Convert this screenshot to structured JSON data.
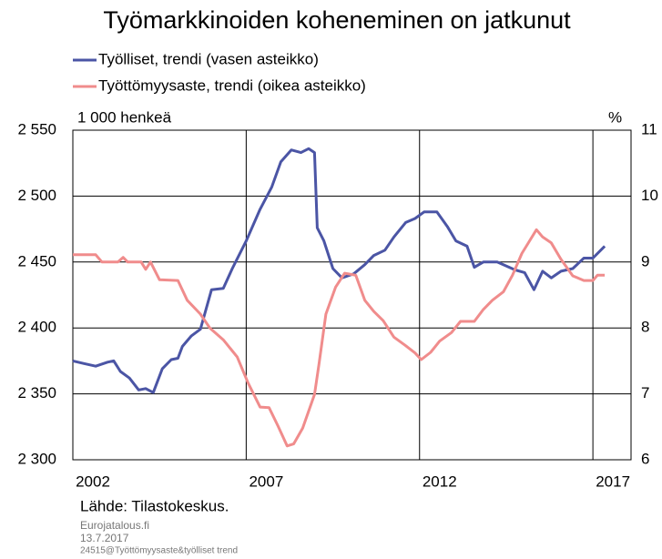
{
  "chart_data": {
    "type": "line",
    "title": "Työmarkkinoiden koheneminen on jatkunut",
    "y_label": "1 000 henkeä",
    "y2_label": "%",
    "source": "Lähde: Tilastokeskus.",
    "footer": [
      "Eurojatalous.fi",
      "13.7.2017",
      "24515@Työttömyysaste&työlliset trend"
    ],
    "xlim": [
      2002,
      2018.1
    ],
    "xticks": [
      2002,
      2007,
      2012,
      2017
    ],
    "ylim": [
      2300,
      2550
    ],
    "yticks": [
      {
        "value": 2300,
        "label": "2 300"
      },
      {
        "value": 2350,
        "label": "2 350"
      },
      {
        "value": 2400,
        "label": "2 400"
      },
      {
        "value": 2450,
        "label": "2 450"
      },
      {
        "value": 2500,
        "label": "2 500"
      },
      {
        "value": 2550,
        "label": "2 550"
      }
    ],
    "y2lim": [
      6,
      11
    ],
    "y2ticks": [
      6,
      7,
      8,
      9,
      10,
      11
    ],
    "grid": true,
    "legend": "top",
    "series": [
      {
        "name": "Työlliset, trendi (vasen asteikko)",
        "color": "#4b55a5",
        "axis": "y",
        "x": [
          2002.0,
          2002.32,
          2002.66,
          2003.0,
          2003.18,
          2003.37,
          2003.63,
          2003.9,
          2004.1,
          2004.32,
          2004.58,
          2004.84,
          2005.03,
          2005.16,
          2005.42,
          2005.68,
          2006.0,
          2006.34,
          2006.6,
          2007.0,
          2007.4,
          2007.74,
          2008.0,
          2008.3,
          2008.58,
          2008.8,
          2008.97,
          2009.05,
          2009.24,
          2009.5,
          2009.76,
          2010.1,
          2010.42,
          2010.68,
          2011.0,
          2011.26,
          2011.6,
          2011.87,
          2012.13,
          2012.5,
          2012.8,
          2013.05,
          2013.37,
          2013.58,
          2013.84,
          2014.24,
          2014.5,
          2014.76,
          2015.03,
          2015.3,
          2015.55,
          2015.8,
          2016.08,
          2016.42,
          2016.74,
          2017.0,
          2017.34
        ],
        "values": [
          2375,
          2373,
          2371,
          2374,
          2375,
          2367,
          2362,
          2353,
          2354,
          2351,
          2369,
          2376,
          2377,
          2386,
          2394,
          2399,
          2429,
          2430,
          2445,
          2466,
          2490,
          2507,
          2526,
          2535,
          2533,
          2536,
          2533,
          2476,
          2466,
          2445,
          2438,
          2441,
          2448,
          2455,
          2459,
          2469,
          2480,
          2483,
          2488,
          2488,
          2477,
          2466,
          2462,
          2446,
          2450,
          2450,
          2447,
          2444,
          2442,
          2429,
          2443,
          2438,
          2443,
          2445,
          2453,
          2453,
          2462
        ]
      },
      {
        "name": "Työttömyysaste, trendi (oikea asteikko)",
        "color": "#f08c8c",
        "axis": "y2",
        "x": [
          2002.0,
          2002.66,
          2002.84,
          2003.3,
          2003.45,
          2003.58,
          2003.97,
          2004.1,
          2004.24,
          2004.5,
          2005.03,
          2005.3,
          2005.68,
          2005.95,
          2006.34,
          2006.74,
          2007.05,
          2007.4,
          2007.66,
          2007.92,
          2008.18,
          2008.37,
          2008.63,
          2008.97,
          2009.1,
          2009.3,
          2009.58,
          2009.84,
          2010.16,
          2010.42,
          2010.68,
          2010.95,
          2011.26,
          2011.6,
          2011.87,
          2012.05,
          2012.32,
          2012.58,
          2012.92,
          2013.18,
          2013.58,
          2013.84,
          2014.1,
          2014.42,
          2014.68,
          2014.95,
          2015.16,
          2015.37,
          2015.55,
          2015.8,
          2016.08,
          2016.42,
          2016.74,
          2017.0,
          2017.13,
          2017.34
        ],
        "values": [
          9.11,
          9.11,
          9.0,
          9.0,
          9.07,
          9.0,
          9.0,
          8.89,
          9.0,
          8.73,
          8.72,
          8.42,
          8.21,
          8.0,
          7.82,
          7.56,
          7.17,
          6.8,
          6.79,
          6.51,
          6.21,
          6.24,
          6.48,
          6.99,
          7.45,
          8.21,
          8.62,
          8.83,
          8.8,
          8.42,
          8.25,
          8.11,
          7.86,
          7.73,
          7.62,
          7.52,
          7.63,
          7.8,
          7.93,
          8.1,
          8.1,
          8.28,
          8.42,
          8.55,
          8.8,
          9.13,
          9.31,
          9.49,
          9.38,
          9.29,
          9.04,
          8.79,
          8.72,
          8.72,
          8.8,
          8.8
        ]
      }
    ]
  }
}
